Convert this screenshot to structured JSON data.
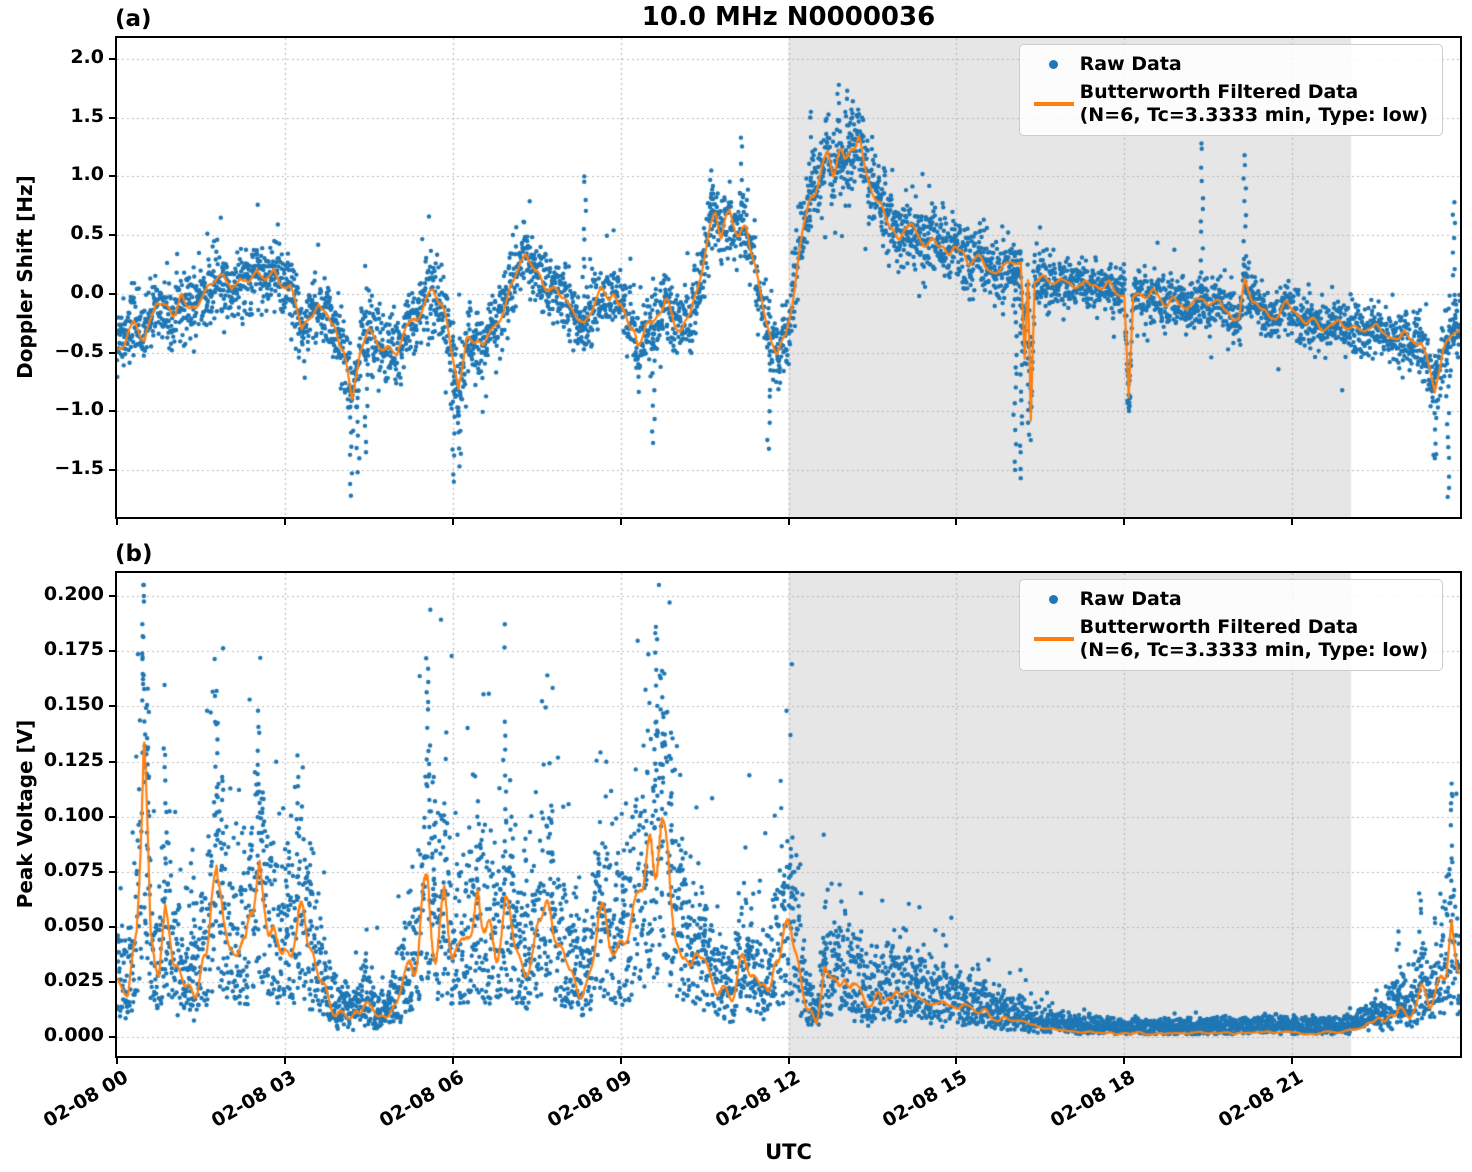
{
  "title": "10.0 MHz N0000036",
  "x_axis": {
    "label": "UTC",
    "tick_hours": [
      0,
      3,
      6,
      9,
      12,
      15,
      18,
      21
    ],
    "tick_labels": [
      "02-08 00",
      "02-08 03",
      "02-08 06",
      "02-08 09",
      "02-08 12",
      "02-08 15",
      "02-08 18",
      "02-08 21"
    ],
    "range_hours": [
      0,
      24
    ]
  },
  "legend": {
    "raw_label": "Raw Data",
    "filtered_label": "Butterworth Filtered Data",
    "filtered_sublabel": "(N=6, Tc=3.3333 min, Type: low)"
  },
  "colors": {
    "raw": "#1f77b4",
    "filtered": "#ff7f0e",
    "shade": "#e6e6e6",
    "grid": "#b5b5b5",
    "spine": "#000000"
  },
  "shaded_region": {
    "start_hour": 12.0,
    "end_hour": 22.05
  },
  "chart_data": [
    {
      "type": "scatter",
      "panel_label": "(a)",
      "ylabel": "Doppler Shift [Hz]",
      "ylim": [
        -1.901,
        2.179
      ],
      "y_ticks": [
        2.0,
        1.5,
        1.0,
        0.5,
        0.0,
        -0.5,
        -1.0,
        -1.5
      ],
      "y_tick_labels": [
        "2.0",
        "1.5",
        "1.0",
        "0.5",
        "0.0",
        "−0.5",
        "−1.0",
        "−1.5"
      ],
      "grid": true,
      "legend_position": "upper right",
      "series_names": [
        "Raw Data",
        "Butterworth Filtered Data (N=6, Tc=3.3333 min, Type: low)"
      ],
      "filtered_points": [
        [
          0,
          -0.42
        ],
        [
          0.15,
          -0.35
        ],
        [
          0.3,
          -0.22
        ],
        [
          0.5,
          -0.38
        ],
        [
          0.7,
          -0.08
        ],
        [
          0.85,
          -0.12
        ],
        [
          1.0,
          -0.18
        ],
        [
          1.15,
          -0.05
        ],
        [
          1.3,
          -0.12
        ],
        [
          1.5,
          -0.02
        ],
        [
          1.7,
          0.05
        ],
        [
          1.9,
          0.15
        ],
        [
          2.05,
          0.0
        ],
        [
          2.2,
          0.12
        ],
        [
          2.35,
          0.05
        ],
        [
          2.5,
          0.2
        ],
        [
          2.65,
          0.1
        ],
        [
          2.8,
          0.22
        ],
        [
          2.95,
          0.1
        ],
        [
          3.1,
          0.05
        ],
        [
          3.3,
          -0.33
        ],
        [
          3.45,
          -0.2
        ],
        [
          3.6,
          -0.1
        ],
        [
          3.75,
          -0.22
        ],
        [
          3.9,
          -0.3
        ],
        [
          4.05,
          -0.5
        ],
        [
          4.2,
          -0.85
        ],
        [
          4.35,
          -0.45
        ],
        [
          4.5,
          -0.3
        ],
        [
          4.65,
          -0.38
        ],
        [
          4.8,
          -0.45
        ],
        [
          5.0,
          -0.58
        ],
        [
          5.15,
          -0.35
        ],
        [
          5.3,
          -0.18
        ],
        [
          5.5,
          -0.05
        ],
        [
          5.65,
          0.02
        ],
        [
          5.8,
          -0.12
        ],
        [
          6.0,
          -0.55
        ],
        [
          6.1,
          -0.8
        ],
        [
          6.25,
          -0.4
        ],
        [
          6.4,
          -0.42
        ],
        [
          6.55,
          -0.45
        ],
        [
          6.7,
          -0.3
        ],
        [
          6.9,
          -0.12
        ],
        [
          7.1,
          0.12
        ],
        [
          7.3,
          0.38
        ],
        [
          7.45,
          0.25
        ],
        [
          7.6,
          0.1
        ],
        [
          7.8,
          -0.02
        ],
        [
          8.0,
          -0.02
        ],
        [
          8.2,
          -0.18
        ],
        [
          8.35,
          -0.25
        ],
        [
          8.5,
          -0.12
        ],
        [
          8.65,
          0.02
        ],
        [
          8.8,
          -0.05
        ],
        [
          9.0,
          -0.02
        ],
        [
          9.15,
          -0.3
        ],
        [
          9.3,
          -0.55
        ],
        [
          9.45,
          -0.35
        ],
        [
          9.6,
          -0.2
        ],
        [
          9.8,
          -0.08
        ],
        [
          9.95,
          -0.18
        ],
        [
          10.1,
          -0.3
        ],
        [
          10.25,
          -0.2
        ],
        [
          10.45,
          0.15
        ],
        [
          10.6,
          0.55
        ],
        [
          10.7,
          0.7
        ],
        [
          10.8,
          0.45
        ],
        [
          10.95,
          0.6
        ],
        [
          11.1,
          0.5
        ],
        [
          11.25,
          0.55
        ],
        [
          11.4,
          0.25
        ],
        [
          11.55,
          -0.1
        ],
        [
          11.7,
          -0.42
        ],
        [
          11.8,
          -0.48
        ],
        [
          11.95,
          -0.35
        ],
        [
          12.1,
          0.1
        ],
        [
          12.25,
          0.55
        ],
        [
          12.4,
          0.85
        ],
        [
          12.55,
          1.05
        ],
        [
          12.7,
          1.18
        ],
        [
          12.8,
          1.0
        ],
        [
          12.9,
          1.1
        ],
        [
          13.0,
          1.05
        ],
        [
          13.1,
          1.15
        ],
        [
          13.25,
          1.3
        ],
        [
          13.35,
          1.1
        ],
        [
          13.5,
          0.9
        ],
        [
          13.65,
          0.8
        ],
        [
          13.8,
          0.65
        ],
        [
          14.0,
          0.55
        ],
        [
          14.2,
          0.5
        ],
        [
          14.4,
          0.42
        ],
        [
          14.6,
          0.45
        ],
        [
          14.8,
          0.38
        ],
        [
          15.0,
          0.36
        ],
        [
          15.2,
          0.3
        ],
        [
          15.4,
          0.32
        ],
        [
          15.6,
          0.25
        ],
        [
          15.8,
          0.22
        ],
        [
          16.0,
          0.2
        ],
        [
          16.15,
          0.22
        ],
        [
          16.22,
          -0.55
        ],
        [
          16.28,
          0.15
        ],
        [
          16.33,
          -1.05
        ],
        [
          16.4,
          0.12
        ],
        [
          16.6,
          0.1
        ],
        [
          16.8,
          0.12
        ],
        [
          17.0,
          0.08
        ],
        [
          17.2,
          0.12
        ],
        [
          17.4,
          0.05
        ],
        [
          17.6,
          0.08
        ],
        [
          17.8,
          0.0
        ],
        [
          18.0,
          0.02
        ],
        [
          18.08,
          -0.85
        ],
        [
          18.16,
          0.0
        ],
        [
          18.3,
          -0.05
        ],
        [
          18.5,
          -0.02
        ],
        [
          18.7,
          -0.08
        ],
        [
          18.9,
          -0.05
        ],
        [
          19.1,
          -0.1
        ],
        [
          19.3,
          -0.05
        ],
        [
          19.5,
          -0.12
        ],
        [
          19.7,
          -0.08
        ],
        [
          19.9,
          -0.15
        ],
        [
          20.05,
          -0.22
        ],
        [
          20.15,
          0.12
        ],
        [
          20.3,
          -0.02
        ],
        [
          20.5,
          -0.12
        ],
        [
          20.7,
          -0.18
        ],
        [
          20.9,
          -0.1
        ],
        [
          21.1,
          -0.25
        ],
        [
          21.3,
          -0.2
        ],
        [
          21.5,
          -0.3
        ],
        [
          21.7,
          -0.25
        ],
        [
          21.9,
          -0.32
        ],
        [
          22.1,
          -0.28
        ],
        [
          22.3,
          -0.35
        ],
        [
          22.5,
          -0.3
        ],
        [
          22.7,
          -0.4
        ],
        [
          22.9,
          -0.35
        ],
        [
          23.1,
          -0.42
        ],
        [
          23.3,
          -0.38
        ],
        [
          23.55,
          -0.88
        ],
        [
          23.7,
          -0.5
        ],
        [
          23.85,
          -0.35
        ],
        [
          24,
          -0.3
        ]
      ],
      "raw_noise_halfwidth": [
        [
          0,
          0.3
        ],
        [
          2,
          0.32
        ],
        [
          3.5,
          0.3
        ],
        [
          4.2,
          0.4
        ],
        [
          5,
          0.34
        ],
        [
          6,
          0.4
        ],
        [
          6.6,
          0.34
        ],
        [
          7.5,
          0.3
        ],
        [
          9,
          0.32
        ],
        [
          9.6,
          0.36
        ],
        [
          10.2,
          0.3
        ],
        [
          11,
          0.32
        ],
        [
          11.8,
          0.36
        ],
        [
          12.5,
          0.33
        ],
        [
          13,
          0.38
        ],
        [
          14,
          0.32
        ],
        [
          15,
          0.3
        ],
        [
          16.4,
          0.28
        ],
        [
          17,
          0.23
        ],
        [
          19,
          0.23
        ],
        [
          20,
          0.25
        ],
        [
          21.5,
          0.23
        ],
        [
          22.8,
          0.25
        ],
        [
          23.5,
          0.3
        ],
        [
          24,
          0.32
        ]
      ],
      "raw_spikes": [
        [
          4.18,
          -1.72
        ],
        [
          4.3,
          -1.52
        ],
        [
          4.45,
          -1.35
        ],
        [
          6.02,
          -1.6
        ],
        [
          6.12,
          -1.47
        ],
        [
          8.35,
          1.0
        ],
        [
          9.58,
          -1.27
        ],
        [
          10.62,
          1.05
        ],
        [
          11.15,
          1.33
        ],
        [
          11.65,
          -1.32
        ],
        [
          12.4,
          1.55
        ],
        [
          12.9,
          1.78
        ],
        [
          13.05,
          1.73
        ],
        [
          13.15,
          1.64
        ],
        [
          16.05,
          -1.5
        ],
        [
          16.15,
          -1.57
        ],
        [
          16.3,
          -1.2
        ],
        [
          18.08,
          -0.97
        ],
        [
          19.38,
          1.28
        ],
        [
          20.15,
          1.18
        ],
        [
          23.55,
          -1.4
        ],
        [
          23.78,
          -1.73
        ],
        [
          23.9,
          0.78
        ]
      ]
    },
    {
      "type": "scatter",
      "panel_label": "(b)",
      "ylabel": "Peak Voltage [V]",
      "ylim": [
        -0.0084,
        0.2104
      ],
      "y_ticks": [
        0.2,
        0.175,
        0.15,
        0.125,
        0.1,
        0.075,
        0.05,
        0.025,
        0.0
      ],
      "y_tick_labels": [
        "0.200",
        "0.175",
        "0.150",
        "0.125",
        "0.100",
        "0.075",
        "0.050",
        "0.025",
        "0.000"
      ],
      "grid": true,
      "legend_position": "upper right",
      "series_names": [
        "Raw Data",
        "Butterworth Filtered Data (N=6, Tc=3.3333 min, Type: low)"
      ],
      "filtered_points": [
        [
          0,
          0.027
        ],
        [
          0.2,
          0.022
        ],
        [
          0.35,
          0.05
        ],
        [
          0.48,
          0.115
        ],
        [
          0.6,
          0.04
        ],
        [
          0.75,
          0.03
        ],
        [
          0.86,
          0.062
        ],
        [
          1.0,
          0.035
        ],
        [
          1.2,
          0.025
        ],
        [
          1.4,
          0.03
        ],
        [
          1.6,
          0.045
        ],
        [
          1.78,
          0.085
        ],
        [
          1.9,
          0.05
        ],
        [
          2.1,
          0.04
        ],
        [
          2.3,
          0.035
        ],
        [
          2.45,
          0.058
        ],
        [
          2.55,
          0.072
        ],
        [
          2.7,
          0.05
        ],
        [
          2.85,
          0.04
        ],
        [
          3.0,
          0.05
        ],
        [
          3.12,
          0.044
        ],
        [
          3.24,
          0.062
        ],
        [
          3.4,
          0.042
        ],
        [
          3.6,
          0.03
        ],
        [
          3.8,
          0.016
        ],
        [
          4.0,
          0.01
        ],
        [
          4.2,
          0.008
        ],
        [
          4.4,
          0.013
        ],
        [
          4.6,
          0.01
        ],
        [
          4.8,
          0.009
        ],
        [
          5.0,
          0.013
        ],
        [
          5.2,
          0.026
        ],
        [
          5.4,
          0.045
        ],
        [
          5.56,
          0.078
        ],
        [
          5.7,
          0.045
        ],
        [
          5.85,
          0.055
        ],
        [
          6.0,
          0.036
        ],
        [
          6.2,
          0.04
        ],
        [
          6.45,
          0.054
        ],
        [
          6.6,
          0.04
        ],
        [
          6.8,
          0.046
        ],
        [
          6.93,
          0.06
        ],
        [
          7.1,
          0.04
        ],
        [
          7.3,
          0.036
        ],
        [
          7.5,
          0.046
        ],
        [
          7.76,
          0.054
        ],
        [
          7.9,
          0.04
        ],
        [
          8.1,
          0.03
        ],
        [
          8.3,
          0.026
        ],
        [
          8.6,
          0.054
        ],
        [
          8.8,
          0.04
        ],
        [
          9.0,
          0.046
        ],
        [
          9.2,
          0.05
        ],
        [
          9.4,
          0.06
        ],
        [
          9.63,
          0.094
        ],
        [
          9.84,
          0.078
        ],
        [
          10.0,
          0.05
        ],
        [
          10.2,
          0.042
        ],
        [
          10.4,
          0.035
        ],
        [
          10.6,
          0.03
        ],
        [
          10.8,
          0.026
        ],
        [
          11.0,
          0.022
        ],
        [
          11.27,
          0.035
        ],
        [
          11.5,
          0.025
        ],
        [
          11.7,
          0.03
        ],
        [
          11.9,
          0.058
        ],
        [
          12.05,
          0.052
        ],
        [
          12.2,
          0.03
        ],
        [
          12.35,
          0.014
        ],
        [
          12.5,
          0.008
        ],
        [
          12.64,
          0.034
        ],
        [
          12.8,
          0.024
        ],
        [
          13.0,
          0.03
        ],
        [
          13.2,
          0.022
        ],
        [
          13.5,
          0.017
        ],
        [
          13.77,
          0.024
        ],
        [
          14.0,
          0.017
        ],
        [
          14.3,
          0.02
        ],
        [
          14.6,
          0.014
        ],
        [
          14.9,
          0.017
        ],
        [
          15.2,
          0.012
        ],
        [
          15.5,
          0.01
        ],
        [
          15.8,
          0.008
        ],
        [
          16.2,
          0.006
        ],
        [
          16.6,
          0.004
        ],
        [
          17.0,
          0.003
        ],
        [
          17.5,
          0.0025
        ],
        [
          18.0,
          0.002
        ],
        [
          19.0,
          0.002
        ],
        [
          20.0,
          0.0022
        ],
        [
          20.5,
          0.003
        ],
        [
          21.0,
          0.002
        ],
        [
          21.5,
          0.0022
        ],
        [
          22.0,
          0.003
        ],
        [
          22.3,
          0.005
        ],
        [
          22.6,
          0.008
        ],
        [
          22.9,
          0.013
        ],
        [
          23.1,
          0.01
        ],
        [
          23.3,
          0.02
        ],
        [
          23.45,
          0.014
        ],
        [
          23.6,
          0.02
        ],
        [
          23.75,
          0.028
        ],
        [
          23.85,
          0.05
        ],
        [
          23.95,
          0.032
        ],
        [
          24,
          0.03
        ]
      ],
      "raw_spikes": [
        [
          0.48,
          0.2
        ],
        [
          0.55,
          0.158
        ],
        [
          0.86,
          0.128
        ],
        [
          1.35,
          0.085
        ],
        [
          1.78,
          0.157
        ],
        [
          1.88,
          0.118
        ],
        [
          2.52,
          0.148
        ],
        [
          2.62,
          0.108
        ],
        [
          3.05,
          0.088
        ],
        [
          3.24,
          0.118
        ],
        [
          3.45,
          0.088
        ],
        [
          4.45,
          0.038
        ],
        [
          5.56,
          0.167
        ],
        [
          5.66,
          0.118
        ],
        [
          5.85,
          0.098
        ],
        [
          6.45,
          0.107
        ],
        [
          6.93,
          0.143
        ],
        [
          7.05,
          0.1
        ],
        [
          7.3,
          0.09
        ],
        [
          7.76,
          0.105
        ],
        [
          8.2,
          0.068
        ],
        [
          8.6,
          0.083
        ],
        [
          9.05,
          0.072
        ],
        [
          9.45,
          0.078
        ],
        [
          9.63,
          0.186
        ],
        [
          9.74,
          0.166
        ],
        [
          9.9,
          0.138
        ],
        [
          10.1,
          0.09
        ],
        [
          10.5,
          0.058
        ],
        [
          11.27,
          0.042
        ],
        [
          11.92,
          0.07
        ],
        [
          12.05,
          0.082
        ],
        [
          12.64,
          0.043
        ],
        [
          13.3,
          0.048
        ],
        [
          14.3,
          0.032
        ],
        [
          22.9,
          0.048
        ],
        [
          23.3,
          0.062
        ],
        [
          23.85,
          0.115
        ]
      ]
    }
  ]
}
